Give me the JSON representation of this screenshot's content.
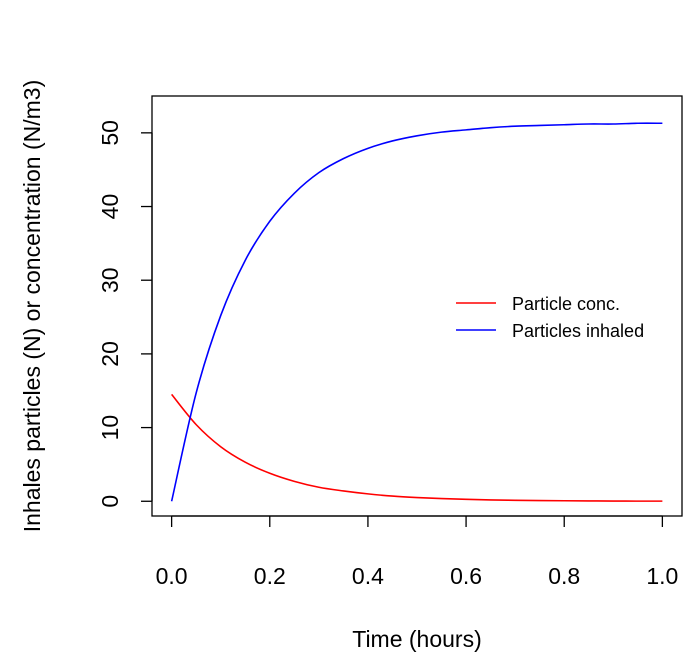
{
  "chart_data": {
    "type": "line",
    "title": "",
    "xlabel": "Time (hours)",
    "ylabel": "Inhales particles (N) or concentration (N/m3)",
    "xlim": [
      -0.04,
      1.04
    ],
    "ylim": [
      -2,
      55
    ],
    "x_ticks": [
      0.0,
      0.2,
      0.4,
      0.6,
      0.8,
      1.0
    ],
    "x_tick_labels": [
      "0.0",
      "0.2",
      "0.4",
      "0.6",
      "0.8",
      "1.0"
    ],
    "y_ticks": [
      0,
      10,
      20,
      30,
      40,
      50
    ],
    "y_tick_labels": [
      "0",
      "10",
      "20",
      "30",
      "40",
      "50"
    ],
    "grid": false,
    "legend": {
      "position": "right"
    },
    "series": [
      {
        "name": "Particle conc.",
        "color": "#ff0000",
        "x": [
          0.0,
          0.05,
          0.1,
          0.15,
          0.2,
          0.25,
          0.3,
          0.35,
          0.4,
          0.45,
          0.5,
          0.55,
          0.6,
          0.65,
          0.7,
          0.75,
          0.8,
          0.85,
          0.9,
          0.95,
          1.0
        ],
        "y": [
          14.5,
          10.4,
          7.4,
          5.3,
          3.8,
          2.7,
          1.9,
          1.4,
          1.0,
          0.7,
          0.5,
          0.36,
          0.26,
          0.18,
          0.13,
          0.09,
          0.07,
          0.05,
          0.03,
          0.02,
          0.02
        ]
      },
      {
        "name": "Particles inhaled",
        "color": "#0000ff",
        "x": [
          0.0,
          0.05,
          0.1,
          0.15,
          0.2,
          0.25,
          0.3,
          0.35,
          0.4,
          0.45,
          0.5,
          0.55,
          0.6,
          0.65,
          0.7,
          0.75,
          0.8,
          0.85,
          0.9,
          0.95,
          1.0
        ],
        "y": [
          0.0,
          14.7,
          25.2,
          32.7,
          38.0,
          41.8,
          44.6,
          46.5,
          47.9,
          48.9,
          49.6,
          50.1,
          50.4,
          50.7,
          50.9,
          51.0,
          51.1,
          51.2,
          51.2,
          51.3,
          51.3
        ]
      }
    ]
  }
}
